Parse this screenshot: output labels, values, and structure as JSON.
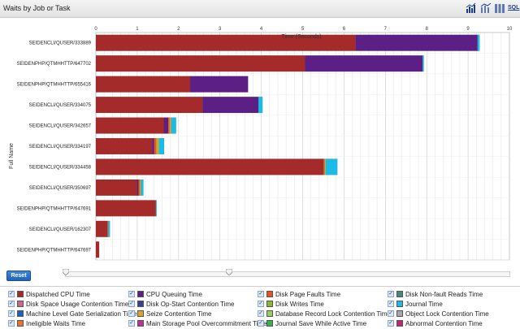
{
  "window": {
    "title": "Waits by Job or Task"
  },
  "toolbar": {
    "icons": [
      "bar-chart-icon",
      "line-chart-icon",
      "column-chart-icon",
      "sql-icon"
    ],
    "sql_label": "SQL"
  },
  "chart_data": {
    "type": "bar",
    "orientation": "horizontal",
    "stacked": true,
    "title": "",
    "xlabel": "Time (Seconds)",
    "ylabel": "Full Name",
    "xlim": [
      0,
      10
    ],
    "xticks": [
      "0",
      "1",
      "2",
      "3",
      "4",
      "5",
      "6",
      "7",
      "8",
      "9",
      "10"
    ],
    "grid": true,
    "categories": [
      "SEIDENCLI/QUSER/333889",
      "SEIDENPHP/QTMHHTTP/647702",
      "SEIDENPHP/QTMHHTTP/655416",
      "SEIDENCLI/QUSER/334075",
      "SEIDENCLI/QUSER/342657",
      "SEIDENCLI/QUSER/334197",
      "SEIDENCLI/QUSER/334458",
      "SEIDENCLI/QUSER/350697",
      "SEIDENPHP/QTMHHTTP/647691",
      "SEIDENCLI/QUSER/162307",
      "SEIDENPHP/QTMHHTTP/647697"
    ],
    "series": [
      {
        "name": "Dispatched CPU Time",
        "color": "#a52a2a",
        "values": [
          6.28,
          5.06,
          2.28,
          2.58,
          1.65,
          1.36,
          5.5,
          1.0,
          1.45,
          0.28,
          0.08
        ]
      },
      {
        "name": "CPU Queuing Time",
        "color": "#5b1f86",
        "values": [
          2.95,
          2.84,
          1.4,
          1.35,
          0.1,
          0.05,
          0.0,
          0.03,
          0.0,
          0.0,
          0.0
        ]
      },
      {
        "name": "Disk Page Faults Time",
        "color": "#e8541e",
        "values": [
          0.0,
          0.0,
          0.0,
          0.0,
          0.03,
          0.05,
          0.03,
          0.03,
          0.0,
          0.02,
          0.0
        ]
      },
      {
        "name": "Seize Contention Time",
        "color": "#d9a62b",
        "values": [
          0.0,
          0.0,
          0.0,
          0.0,
          0.04,
          0.05,
          0.0,
          0.03,
          0.0,
          0.0,
          0.0
        ]
      },
      {
        "name": "Database Record Lock Contention Time",
        "color": "#9acd5e",
        "values": [
          0.0,
          0.0,
          0.0,
          0.0,
          0.0,
          0.02,
          0.03,
          0.0,
          0.0,
          0.0,
          0.0
        ]
      },
      {
        "name": "Journal Time",
        "color": "#1bbbe8",
        "values": [
          0.05,
          0.03,
          0.0,
          0.1,
          0.12,
          0.12,
          0.28,
          0.06,
          0.02,
          0.04,
          0.0
        ]
      }
    ]
  },
  "controls": {
    "reset_label": "Reset"
  },
  "legend": {
    "items": [
      {
        "label": "Dispatched CPU Time",
        "color": "#a52a2a"
      },
      {
        "label": "CPU Queuing Time",
        "color": "#5b1f86"
      },
      {
        "label": "Disk Page Faults Time",
        "color": "#e8541e"
      },
      {
        "label": "Disk Non-fault Reads Time",
        "color": "#3f8c7f"
      },
      {
        "label": "Disk Space Usage Contention Time",
        "color": "#c26b8a"
      },
      {
        "label": "Disk Op-Start Contention Time",
        "color": "#3a3f99"
      },
      {
        "label": "Disk Writes Time",
        "color": "#8ab82e"
      },
      {
        "label": "Journal Time",
        "color": "#1bbbe8"
      },
      {
        "label": "Machine Level Gate Serialization Time",
        "color": "#1f5fbf"
      },
      {
        "label": "Seize Contention Time",
        "color": "#d9a62b"
      },
      {
        "label": "Database Record Lock Contention Time",
        "color": "#9acd5e"
      },
      {
        "label": "Object Lock Contention Time",
        "color": "#a7a7a7"
      },
      {
        "label": "Ineligible Waits Time",
        "color": "#f07030"
      },
      {
        "label": "Main Storage Pool Overcommitment Time",
        "color": "#c0309a"
      },
      {
        "label": "Journal Save While Active Time",
        "color": "#2fb54a"
      },
      {
        "label": "Abnormal Contention Time",
        "color": "#c8207a"
      }
    ]
  }
}
